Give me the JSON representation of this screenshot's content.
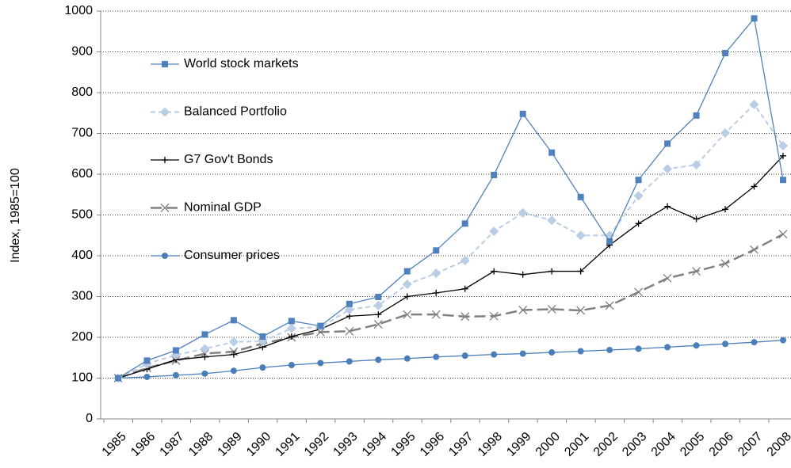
{
  "chart_data": {
    "type": "line",
    "y_label": "Index, 1985=100",
    "categories": [
      "1985",
      "1986",
      "1987",
      "1988",
      "1989",
      "1990",
      "1991",
      "1992",
      "1993",
      "1994",
      "1995",
      "1996",
      "1997",
      "1998",
      "1999",
      "2000",
      "2001",
      "2002",
      "2003",
      "2004",
      "2005",
      "2006",
      "2007",
      "2008"
    ],
    "ylim": [
      0,
      1000
    ],
    "yticks": [
      0,
      100,
      200,
      300,
      400,
      500,
      600,
      700,
      800,
      900,
      1000
    ],
    "grid": true,
    "legend": "top-left",
    "series": [
      {
        "name": "World stock markets",
        "color": "#4f81bd",
        "marker": "square",
        "dash": "solid",
        "values": [
          100,
          143,
          168,
          207,
          242,
          202,
          240,
          228,
          282,
          299,
          362,
          413,
          479,
          598,
          748,
          653,
          544,
          435,
          586,
          675,
          744,
          897,
          982,
          586
        ]
      },
      {
        "name": "Balanced Portfolio",
        "color": "#b9cde5",
        "marker": "diamond",
        "dash": "dashed",
        "values": [
          100,
          135,
          157,
          172,
          189,
          190,
          222,
          225,
          268,
          278,
          330,
          357,
          388,
          460,
          505,
          487,
          450,
          450,
          547,
          613,
          623,
          701,
          771,
          670
        ]
      },
      {
        "name": "G7 Gov't Bonds",
        "color": "#000000",
        "marker": "plus",
        "dash": "solid",
        "values": [
          100,
          122,
          145,
          152,
          158,
          176,
          202,
          220,
          252,
          256,
          300,
          309,
          319,
          362,
          354,
          362,
          362,
          426,
          479,
          521,
          490,
          514,
          570,
          645
        ]
      },
      {
        "name": "Nominal GDP",
        "color": "#808080",
        "marker": "cross",
        "dash": "longdash",
        "values": [
          100,
          125,
          143,
          160,
          165,
          185,
          200,
          213,
          215,
          232,
          256,
          256,
          251,
          252,
          267,
          269,
          266,
          278,
          311,
          345,
          362,
          381,
          415,
          453
        ]
      },
      {
        "name": "Consumer prices",
        "color": "#4a7ebb",
        "marker": "circle",
        "dash": "solid",
        "values": [
          100,
          103,
          107,
          111,
          118,
          126,
          132,
          137,
          141,
          145,
          148,
          152,
          155,
          158,
          160,
          163,
          166,
          169,
          172,
          176,
          180,
          184,
          188,
          193
        ]
      }
    ]
  }
}
